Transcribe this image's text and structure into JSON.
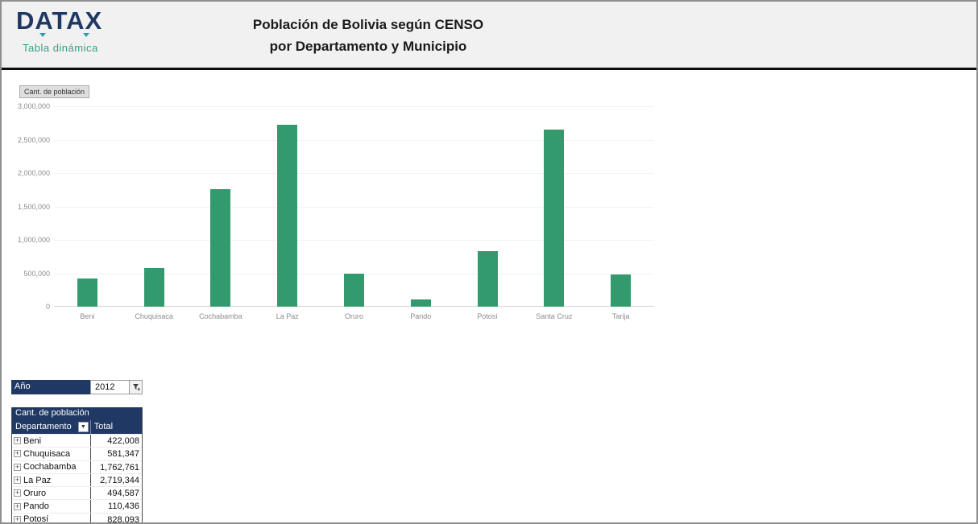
{
  "header": {
    "logo_text": "DATAX",
    "logo_subtitle": "Tabla dinámica",
    "title_line1": "Población de Bolivia según CENSO",
    "title_line2": "por Departamento y Municipio"
  },
  "colors": {
    "navy": "#1F3864",
    "teal": "#35A083",
    "bar_green": "#339A6E",
    "header_band": "#F1F1F1"
  },
  "chart_data": {
    "type": "bar",
    "field_button_label": "Cant. de población",
    "categories": [
      "Beni",
      "Chuquisaca",
      "Cochabamba",
      "La Paz",
      "Oruro",
      "Pando",
      "Potosí",
      "Santa Cruz",
      "Tarija"
    ],
    "values": [
      422008,
      581347,
      1762761,
      2719344,
      494587,
      110436,
      828093,
      2655000,
      482000
    ],
    "title": "",
    "xlabel": "",
    "ylabel": "",
    "ylim": [
      0,
      3000000
    ],
    "ytick_step": 500000,
    "ytick_labels": [
      "0",
      "500,000",
      "1,000,000",
      "1,500,000",
      "2,000,000",
      "2,500,000",
      "3,000,000"
    ],
    "grid": true,
    "legend": "none",
    "bar_color": "#339A6E"
  },
  "filter": {
    "label": "Año",
    "value": "2012"
  },
  "pivot": {
    "title": "Cant. de población",
    "col1_header": "Departamento",
    "col2_header": "Total",
    "rows": [
      {
        "name": "Beni",
        "total": "422,008"
      },
      {
        "name": "Chuquisaca",
        "total": "581,347"
      },
      {
        "name": "Cochabamba",
        "total": "1,762,761"
      },
      {
        "name": "La Paz",
        "total": "2,719,344"
      },
      {
        "name": "Oruro",
        "total": "494,587"
      },
      {
        "name": "Pando",
        "total": "110,436"
      },
      {
        "name": "Potosí",
        "total": "828,093"
      }
    ]
  }
}
